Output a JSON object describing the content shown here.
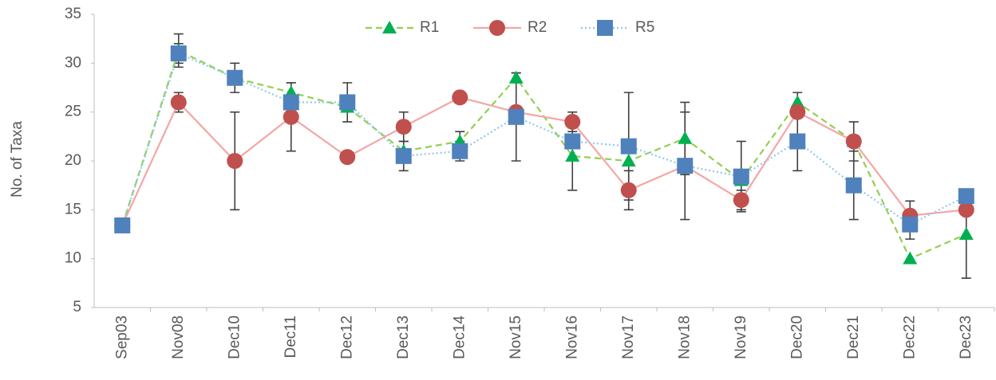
{
  "chart_data": {
    "type": "line",
    "y_label": "No. of Taxa",
    "categories": [
      "Sep03",
      "Nov08",
      "Dec10",
      "Dec11",
      "Dec12",
      "Dec13",
      "Dec14",
      "Nov15",
      "Nov16",
      "Nov17",
      "Nov18",
      "Nov19",
      "Dec20",
      "Dec21",
      "Dec22",
      "Dec23"
    ],
    "series": [
      {
        "name": "R1",
        "color": "#00b050",
        "line_color": "#92d050",
        "dash": "8,5",
        "marker": "triangle",
        "values": [
          13.4,
          31.3,
          28.5,
          27,
          25.5,
          21,
          22,
          28.5,
          20.5,
          20,
          22.3,
          18,
          26,
          22,
          10,
          12.5
        ],
        "errors": [
          null,
          1.7,
          null,
          null,
          null,
          null,
          1,
          0.5,
          3.5,
          null,
          3.7,
          null,
          1,
          null,
          null,
          4.5
        ]
      },
      {
        "name": "R2",
        "color": "#c0504d",
        "line_color": "#f4a6a6",
        "dash": "none",
        "marker": "circle",
        "values": [
          13.4,
          26,
          20,
          24.5,
          20.4,
          23.5,
          26.5,
          25,
          24,
          17,
          19.5,
          16,
          25,
          22,
          14.4,
          15
        ],
        "errors": [
          null,
          1,
          5,
          3.5,
          null,
          1.5,
          null,
          null,
          1,
          2,
          null,
          1,
          null,
          2,
          1.5,
          null
        ]
      },
      {
        "name": "R5",
        "color": "#4f81bd",
        "line_color": "#8fc9e8",
        "dash": "2,3",
        "marker": "square",
        "values": [
          13.4,
          31,
          28.5,
          26,
          26,
          20.5,
          21,
          24.5,
          22,
          21.5,
          19.5,
          18.4,
          22,
          17.5,
          13.5,
          16.4
        ],
        "errors": [
          null,
          1,
          1.5,
          2,
          2,
          1.5,
          1,
          4.5,
          null,
          5.5,
          5.5,
          3.6,
          3,
          3.5,
          1.5,
          null
        ]
      }
    ],
    "ylim": [
      5,
      35
    ],
    "yticks": [
      5,
      10,
      15,
      20,
      25,
      30,
      35
    ],
    "grid": false,
    "legend": "top"
  }
}
